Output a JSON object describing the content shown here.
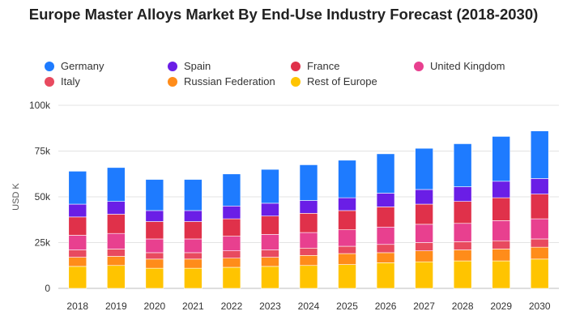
{
  "title": "Europe Master Alloys Market By End-Use Industry Forecast (2018-2030)",
  "chart_data": {
    "type": "bar",
    "stacked": true,
    "categories": [
      "2018",
      "2019",
      "2020",
      "2021",
      "2022",
      "2023",
      "2024",
      "2025",
      "2026",
      "2027",
      "2028",
      "2029",
      "2030"
    ],
    "series": [
      {
        "name": "Rest of Europe",
        "color": "#ffc400",
        "values": [
          12000,
          12500,
          11000,
          11000,
          11500,
          12000,
          12500,
          13000,
          14000,
          14500,
          15000,
          15000,
          16000
        ]
      },
      {
        "name": "Russian Federation",
        "color": "#ff8c1a",
        "values": [
          5000,
          5000,
          5000,
          5000,
          5000,
          5000,
          5500,
          6000,
          5500,
          6000,
          6000,
          6500,
          6500
        ]
      },
      {
        "name": "Italy",
        "color": "#e84a5f",
        "values": [
          4000,
          4000,
          3500,
          3500,
          4000,
          4000,
          4000,
          4000,
          4500,
          4500,
          4500,
          4500,
          4500
        ]
      },
      {
        "name": "United Kingdom",
        "color": "#e8408f",
        "values": [
          8000,
          8500,
          7500,
          7500,
          8000,
          8500,
          8500,
          9000,
          9500,
          10000,
          10000,
          11000,
          11000
        ]
      },
      {
        "name": "France",
        "color": "#e0314a",
        "values": [
          10000,
          10500,
          9500,
          9500,
          9500,
          10000,
          10500,
          10500,
          11000,
          11000,
          12000,
          12500,
          13500
        ]
      },
      {
        "name": "Spain",
        "color": "#6a1ee6",
        "values": [
          7000,
          7000,
          6000,
          6000,
          7000,
          7000,
          7000,
          7000,
          7500,
          8000,
          8000,
          9000,
          8500
        ]
      },
      {
        "name": "Germany",
        "color": "#1e7bff",
        "values": [
          18000,
          18500,
          17000,
          17000,
          17500,
          18500,
          19500,
          20500,
          21500,
          22500,
          23500,
          24500,
          26000
        ]
      }
    ],
    "legend_order": [
      "Germany",
      "Spain",
      "France",
      "United Kingdom",
      "Italy",
      "Russian Federation",
      "Rest of Europe"
    ],
    "ylabel": "USD K",
    "xlabel": "",
    "ylim": [
      0,
      100000
    ],
    "yticks": [
      {
        "value": 0,
        "label": "0"
      },
      {
        "value": 25000,
        "label": "25k"
      },
      {
        "value": 50000,
        "label": "50k"
      },
      {
        "value": 75000,
        "label": "75k"
      },
      {
        "value": 100000,
        "label": "100k"
      }
    ],
    "grid": true,
    "legend_position": "top"
  }
}
